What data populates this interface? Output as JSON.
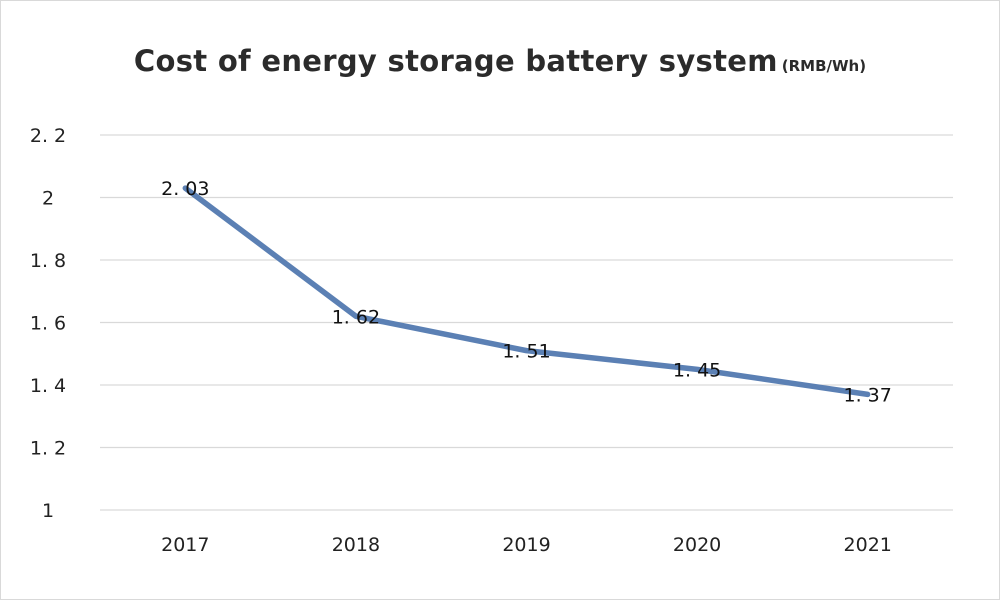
{
  "chart_data": {
    "type": "line",
    "title": "Cost of energy storage battery system",
    "unit": "(RMB/Wh)",
    "categories": [
      "2017",
      "2018",
      "2019",
      "2020",
      "2021"
    ],
    "series": [
      {
        "values": [
          2.03,
          1.62,
          1.51,
          1.45,
          1.37
        ],
        "value_labels": [
          "2. 03",
          "1. 62",
          "1. 51",
          "1. 45",
          "1. 37"
        ],
        "color": "#5b80b4"
      }
    ],
    "yticks": [
      1,
      1.2,
      1.4,
      1.6,
      1.8,
      2,
      2.2
    ],
    "ytick_labels": [
      "1",
      "1. 2",
      "1. 4",
      "1. 6",
      "1. 8",
      "2",
      "2. 2"
    ],
    "ylim": [
      1,
      2.2
    ],
    "grid": true,
    "gridColor": "#d9d9d9",
    "xlabel": "",
    "ylabel": ""
  }
}
